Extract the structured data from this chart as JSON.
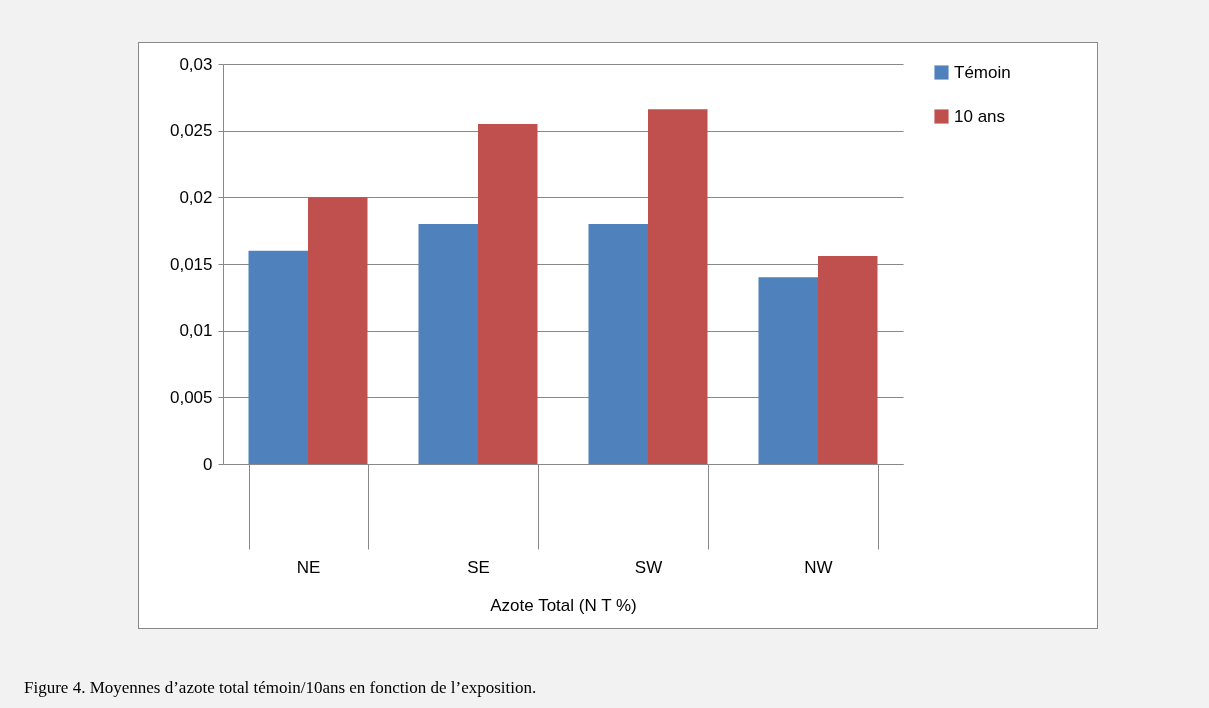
{
  "chart_data": {
    "type": "bar",
    "xlabel": "Azote Total  (N T %)",
    "categories": [
      "NE",
      "SE",
      "SW",
      "NW"
    ],
    "series": [
      {
        "name": "Témoin",
        "color": "#4f81bd",
        "values": [
          0.016,
          0.018,
          0.018,
          0.014
        ]
      },
      {
        "name": "10 ans",
        "color": "#c0504d",
        "values": [
          0.02,
          0.0255,
          0.0266,
          0.0156
        ]
      }
    ],
    "ylim": [
      0,
      0.03
    ],
    "yticks": [
      {
        "value": 0,
        "label": "0"
      },
      {
        "value": 0.005,
        "label": "0,005"
      },
      {
        "value": 0.01,
        "label": "0,01"
      },
      {
        "value": 0.015,
        "label": "0,015"
      },
      {
        "value": 0.02,
        "label": "0,02"
      },
      {
        "value": 0.025,
        "label": "0,025"
      },
      {
        "value": 0.03,
        "label": "0,03"
      }
    ],
    "grid": "y",
    "legend": "right",
    "annotations": [
      "Figure 4. Moyennes d’azote total témoin/10ans en fonction de l’exposition."
    ]
  }
}
